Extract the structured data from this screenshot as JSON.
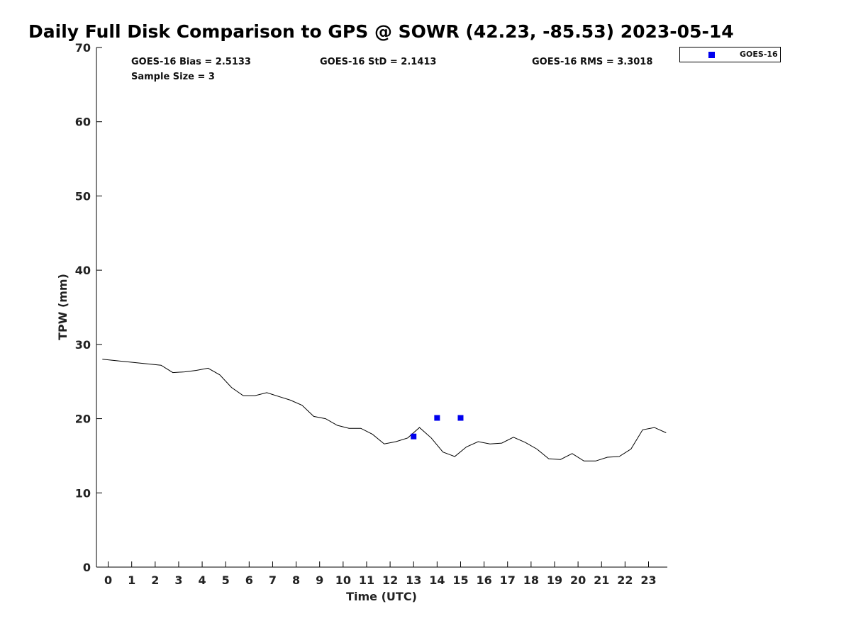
{
  "chart_data": {
    "type": "scatter",
    "title": "Daily Full Disk Comparison to GPS @ SOWR (42.23, -85.53) 2023-05-14",
    "xlabel": "Time (UTC)",
    "ylabel": "TPW (mm)",
    "xlim": [
      -0.5,
      23.8
    ],
    "ylim": [
      0,
      70
    ],
    "x_ticks": [
      0,
      1,
      2,
      3,
      4,
      5,
      6,
      7,
      8,
      9,
      10,
      11,
      12,
      13,
      14,
      15,
      16,
      17,
      18,
      19,
      20,
      21,
      22,
      23
    ],
    "y_ticks": [
      0,
      10,
      20,
      30,
      40,
      50,
      60,
      70
    ],
    "grid": false,
    "legend_position": "top-right outside",
    "stats": {
      "bias": "GOES-16 Bias = 2.5133",
      "std": "GOES-16 StD = 2.1413",
      "rms": "GOES-16 RMS = 3.3018",
      "sample_size": "Sample Size = 3"
    },
    "series": [
      {
        "kind": "line",
        "color": "#000000",
        "x": [
          -0.25,
          2.25,
          2.75,
          3.25,
          3.75,
          4.25,
          4.75,
          5.25,
          5.75,
          6.25,
          6.75,
          7.25,
          7.75,
          8.25,
          8.75,
          9.25,
          9.75,
          10.25,
          10.75,
          11.25,
          11.75,
          12.25,
          12.75,
          13.25,
          13.75,
          14.25,
          14.75,
          15.25,
          15.75,
          16.25,
          16.75,
          17.25,
          17.75,
          18.25,
          18.75,
          19.25,
          19.75,
          20.25,
          20.75,
          21.25,
          21.75,
          22.25,
          22.75,
          23.25,
          23.75
        ],
        "y": [
          28.0,
          27.2,
          26.2,
          26.3,
          26.5,
          26.8,
          25.9,
          24.2,
          23.1,
          23.1,
          23.5,
          23.0,
          22.5,
          21.8,
          20.3,
          20.0,
          19.1,
          18.7,
          18.7,
          17.9,
          16.6,
          16.9,
          17.4,
          18.8,
          17.4,
          15.5,
          14.9,
          16.2,
          16.9,
          16.6,
          16.7,
          17.5,
          16.8,
          15.9,
          14.6,
          14.5,
          15.3,
          14.3,
          14.3,
          14.8,
          14.9,
          15.9,
          18.5,
          18.8,
          18.1
        ]
      },
      {
        "name": "GOES-16",
        "kind": "scatter",
        "marker": "square",
        "color": "#0000ee",
        "x": [
          13,
          14,
          15
        ],
        "y": [
          17.6,
          20.1,
          20.1
        ]
      }
    ]
  }
}
